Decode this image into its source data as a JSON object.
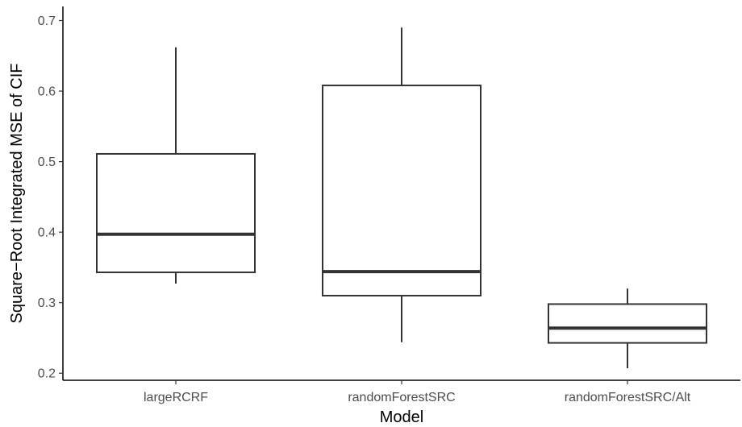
{
  "chart_data": {
    "type": "box",
    "xlabel": "Model",
    "ylabel": "Square−Root Integrated MSE of CIF",
    "ylim": [
      0.19,
      0.72
    ],
    "y_ticks": [
      0.2,
      0.3,
      0.4,
      0.5,
      0.6,
      0.7
    ],
    "y_tick_labels": [
      "0.2",
      "0.3",
      "0.4",
      "0.5",
      "0.6",
      "0.7"
    ],
    "categories": [
      "largeRCRF",
      "randomForestSRC",
      "randomForestSRC/Alt"
    ],
    "boxes": [
      {
        "name": "largeRCRF",
        "min": 0.327,
        "q1": 0.343,
        "median": 0.397,
        "q3": 0.511,
        "max": 0.662
      },
      {
        "name": "randomForestSRC",
        "min": 0.244,
        "q1": 0.31,
        "median": 0.344,
        "q3": 0.608,
        "max": 0.69
      },
      {
        "name": "randomForestSRC/Alt",
        "min": 0.207,
        "q1": 0.243,
        "median": 0.264,
        "q3": 0.298,
        "max": 0.32
      }
    ],
    "grid": false,
    "legend": "none"
  }
}
